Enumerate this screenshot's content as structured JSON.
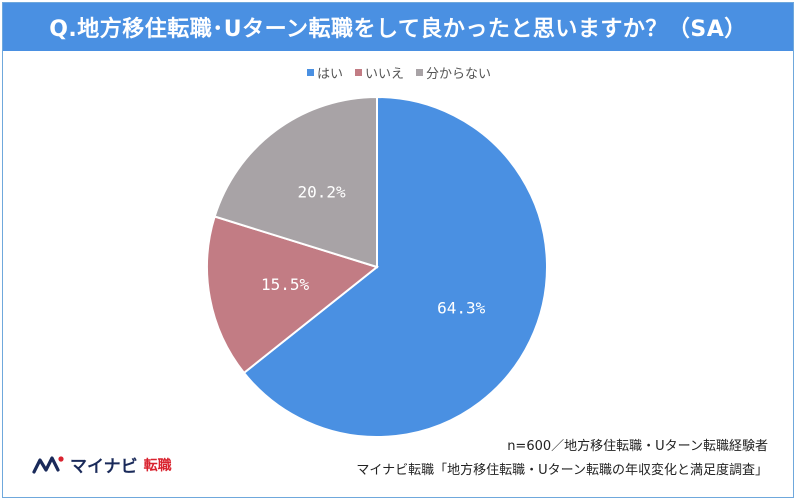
{
  "title": "Q.地方移住転職･Uターン転職をして良かったと思いますか？（SA）",
  "legend": [
    {
      "label": "はい",
      "color": "#4a90e2"
    },
    {
      "label": "いいえ",
      "color": "#c27c84"
    },
    {
      "label": "分からない",
      "color": "#a8a3a6"
    }
  ],
  "chart_data": {
    "type": "pie",
    "categories": [
      "はい",
      "いいえ",
      "分からない"
    ],
    "values": [
      64.3,
      15.5,
      20.2
    ],
    "data_labels": [
      "64.3%",
      "15.5%",
      "20.2%"
    ],
    "colors": [
      "#4a90e2",
      "#c27c84",
      "#a8a3a6"
    ],
    "title": "Q.地方移住転職･Uターン転職をして良かったと思いますか？（SA）",
    "legend_position": "top"
  },
  "footnote_n": "n=600／地方移住転職・Uターン転職経験者",
  "footnote_source": "マイナビ転職「地方移住転職・Uターン転職の年収変化と満足度調査」",
  "logo": {
    "brand": "マイナビ",
    "sub": "転職"
  }
}
